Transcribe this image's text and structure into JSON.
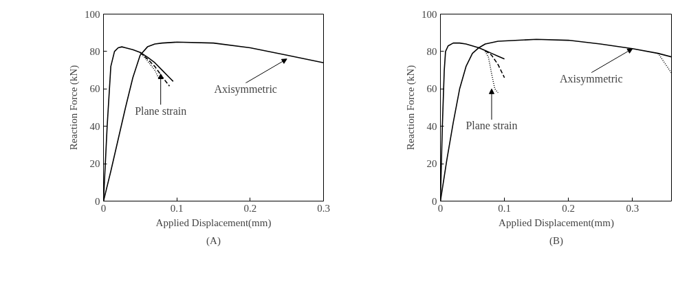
{
  "chart_data": [
    {
      "type": "line",
      "xlabel": "Applied Displacement(mm)",
      "ylabel": "Reaction Force (kN)",
      "xlim": [
        0,
        0.3
      ],
      "ylim": [
        0,
        100
      ],
      "xticks": [
        0,
        0.1,
        0.2,
        0.3
      ],
      "yticks": [
        0,
        20,
        40,
        60,
        80,
        100
      ],
      "grid": false,
      "series": [
        {
          "color": "#000000",
          "line_style": "solid",
          "x": [
            0,
            0.005,
            0.01,
            0.015,
            0.02,
            0.025,
            0.03,
            0.04,
            0.05,
            0.06,
            0.07,
            0.08,
            0.09,
            0.095
          ],
          "values": [
            0,
            40,
            72,
            80,
            82,
            82.5,
            82,
            81,
            79.5,
            77,
            74,
            70,
            66,
            64
          ]
        },
        {
          "color": "#000000",
          "line_style": "dashed",
          "x": [
            0.05,
            0.06,
            0.07,
            0.08,
            0.09
          ],
          "values": [
            79.5,
            76,
            72,
            66.5,
            61.5
          ]
        },
        {
          "color": "#000000",
          "line_style": "dotted",
          "x": [
            0.05,
            0.06,
            0.07,
            0.075
          ],
          "values": [
            79.5,
            75,
            70,
            66
          ]
        },
        {
          "color": "#000000",
          "line_style": "solid",
          "x": [
            0,
            0.01,
            0.02,
            0.03,
            0.04,
            0.05,
            0.06,
            0.07,
            0.08,
            0.1,
            0.15,
            0.2,
            0.25,
            0.3
          ],
          "values": [
            0,
            16,
            33,
            50,
            66,
            78,
            82.5,
            84,
            84.5,
            85,
            84.5,
            82,
            78,
            74
          ]
        }
      ],
      "annotations": [
        {
          "text": "Plane strain",
          "x": 0.078,
          "y": 68
        },
        {
          "text": "Axisymmetric",
          "x": 0.25,
          "y": 76
        },
        "(A)"
      ]
    },
    {
      "type": "line",
      "xlabel": "Applied Displacement(mm)",
      "ylabel": "Reaction Force (kN)",
      "xlim": [
        0,
        0.362
      ],
      "ylim": [
        0,
        100
      ],
      "xticks": [
        0,
        0.1,
        0.2,
        0.3
      ],
      "yticks": [
        0,
        20,
        40,
        60,
        80,
        100
      ],
      "grid": false,
      "series": [
        {
          "color": "#000000",
          "line_style": "solid",
          "x": [
            0,
            0.003,
            0.006,
            0.008,
            0.012,
            0.02,
            0.03,
            0.04,
            0.05,
            0.06,
            0.07,
            0.08,
            0.09,
            0.1
          ],
          "values": [
            0,
            40,
            70,
            80,
            83,
            84.5,
            84.5,
            84,
            83,
            82,
            80.5,
            79,
            77.5,
            76
          ]
        },
        {
          "color": "#000000",
          "line_style": "dashed",
          "x": [
            0.07,
            0.08,
            0.09,
            0.1
          ],
          "values": [
            80.5,
            78,
            73,
            66
          ]
        },
        {
          "color": "#000000",
          "line_style": "dotted",
          "x": [
            0.07,
            0.075,
            0.08,
            0.085,
            0.09
          ],
          "values": [
            80,
            77,
            68,
            60,
            58
          ]
        },
        {
          "color": "#000000",
          "line_style": "solid",
          "x": [
            0,
            0.01,
            0.02,
            0.03,
            0.04,
            0.05,
            0.06,
            0.07,
            0.09,
            0.15,
            0.2,
            0.25,
            0.3,
            0.34,
            0.362
          ],
          "values": [
            0,
            22,
            42,
            60,
            72,
            79,
            82,
            84,
            85.5,
            86.5,
            86,
            84,
            81.5,
            79,
            77
          ]
        },
        {
          "color": "#000000",
          "line_style": "dotted",
          "x": [
            0.34,
            0.35,
            0.362
          ],
          "values": [
            79,
            74,
            68
          ]
        }
      ],
      "annotations": [
        {
          "text": "Plane strain",
          "x": 0.08,
          "y": 60
        },
        {
          "text": "Axisymmetric",
          "x": 0.3,
          "y": 81.5
        },
        "(B)"
      ]
    }
  ]
}
